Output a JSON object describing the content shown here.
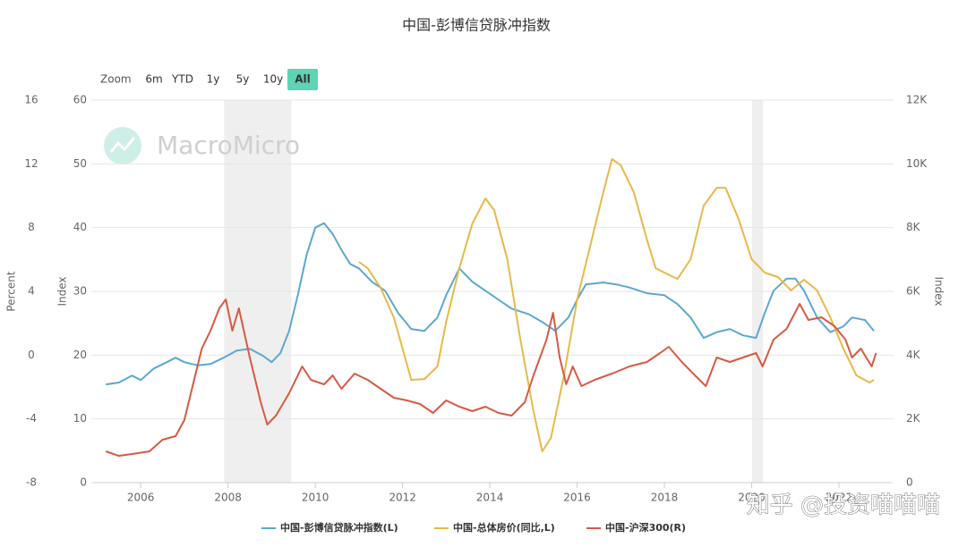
{
  "chart_data": {
    "type": "line",
    "title": "中国-彭博信贷脉冲指数",
    "zoom": {
      "label": "Zoom",
      "buttons": [
        "6m",
        "YTD",
        "1y",
        "5y",
        "10y",
        "All"
      ],
      "selected_index": 5
    },
    "watermarks": [
      "MacroMicro",
      "知乎 @投资喵喵喵"
    ],
    "y_title": "Index",
    "y2_title": "Index",
    "y3_title": "Percent",
    "xlim": [
      2004.93,
      2023.19
    ],
    "xticks": [
      2006,
      2008,
      2010,
      2012,
      2014,
      2016,
      2018,
      2020,
      2022
    ],
    "ylim": [
      0,
      60
    ],
    "yticks": [
      0,
      10,
      20,
      30,
      40,
      50,
      60
    ],
    "y2lim": [
      0,
      12000
    ],
    "y2ticks": [
      0,
      {
        "value": 2000,
        "label": "2K"
      },
      {
        "value": 4000,
        "label": "4K"
      },
      {
        "value": 6000,
        "label": "6K"
      },
      {
        "value": 8000,
        "label": "8K"
      },
      {
        "value": 10000,
        "label": "10K"
      },
      {
        "value": 12000,
        "label": "12K"
      }
    ],
    "y3lim": [
      -8,
      16
    ],
    "y3ticks": [
      -8,
      -4,
      0,
      4,
      8,
      12,
      16
    ],
    "grid": true,
    "legend": "bottom",
    "shaded_x": [
      [
        2007.91,
        2009.45
      ],
      [
        2020.01,
        2020.26
      ]
    ],
    "series": [
      {
        "name": "中国-彭博信贷脉冲指数(L)",
        "color": "#5ba8d0",
        "axis": "y",
        "x": [
          2005.2,
          2005.5,
          2005.8,
          2006.0,
          2006.3,
          2006.6,
          2006.8,
          2007.0,
          2007.3,
          2007.6,
          2007.9,
          2008.2,
          2008.5,
          2008.8,
          2009.0,
          2009.2,
          2009.4,
          2009.6,
          2009.8,
          2010.0,
          2010.2,
          2010.4,
          2010.6,
          2010.8,
          2011.0,
          2011.3,
          2011.6,
          2011.9,
          2012.2,
          2012.5,
          2012.8,
          2013.0,
          2013.3,
          2013.6,
          2013.9,
          2014.2,
          2014.5,
          2014.9,
          2015.2,
          2015.5,
          2015.8,
          2016.0,
          2016.2,
          2016.6,
          2016.9,
          2017.2,
          2017.6,
          2018.0,
          2018.3,
          2018.6,
          2018.9,
          2019.2,
          2019.5,
          2019.8,
          2020.1,
          2020.3,
          2020.5,
          2020.8,
          2021.0,
          2021.2,
          2021.5,
          2021.8,
          2022.1,
          2022.3,
          2022.6,
          2022.8
        ],
        "values": [
          15.4,
          15.7,
          16.8,
          16.1,
          17.9,
          18.9,
          19.6,
          18.9,
          18.4,
          18.6,
          19.6,
          20.7,
          21.0,
          19.9,
          18.9,
          20.3,
          23.8,
          29.4,
          35.7,
          40.0,
          40.7,
          39.0,
          36.5,
          34.3,
          33.6,
          31.5,
          30.1,
          26.6,
          24.1,
          23.8,
          25.9,
          29.4,
          33.6,
          31.5,
          30.1,
          28.7,
          27.3,
          26.4,
          25.2,
          23.8,
          25.9,
          28.7,
          31.1,
          31.4,
          31.1,
          30.6,
          29.7,
          29.4,
          28.0,
          25.9,
          22.7,
          23.6,
          24.1,
          23.1,
          22.7,
          26.6,
          30.1,
          32.0,
          32.0,
          30.1,
          25.9,
          23.6,
          24.5,
          25.9,
          25.5,
          23.8
        ]
      },
      {
        "name": "中国-总体房价(同比,L)",
        "color": "#e8b94a",
        "axis": "y3",
        "x": [
          2011.0,
          2011.2,
          2011.5,
          2011.8,
          2012.0,
          2012.2,
          2012.5,
          2012.8,
          2013.0,
          2013.3,
          2013.6,
          2013.9,
          2014.1,
          2014.4,
          2014.7,
          2015.0,
          2015.2,
          2015.4,
          2015.7,
          2016.0,
          2016.3,
          2016.6,
          2016.8,
          2017.0,
          2017.3,
          2017.6,
          2017.8,
          2018.0,
          2018.3,
          2018.6,
          2018.9,
          2019.2,
          2019.4,
          2019.7,
          2020.0,
          2020.3,
          2020.6,
          2020.9,
          2021.2,
          2021.5,
          2021.8,
          2022.1,
          2022.4,
          2022.7,
          2022.8
        ],
        "values": [
          5.85,
          5.46,
          4.22,
          2.37,
          0.41,
          -1.55,
          -1.5,
          -0.71,
          2.09,
          5.46,
          8.26,
          9.83,
          9.1,
          6.02,
          0.97,
          -3.51,
          -6.04,
          -5.2,
          -1.27,
          3.49,
          6.86,
          10.22,
          12.3,
          11.91,
          10.22,
          7.25,
          5.46,
          5.18,
          4.78,
          6.02,
          9.38,
          10.5,
          10.5,
          8.54,
          6.02,
          5.18,
          4.9,
          4.06,
          4.73,
          4.06,
          2.37,
          0.41,
          -1.27,
          -1.72,
          -1.55
        ]
      },
      {
        "name": "中国-沪深300(R)",
        "color": "#d65a44",
        "axis": "y2",
        "x": [
          2005.2,
          2005.5,
          2005.8,
          2006.2,
          2006.5,
          2006.8,
          2007.0,
          2007.2,
          2007.4,
          2007.6,
          2007.8,
          2007.95,
          2008.1,
          2008.25,
          2008.5,
          2008.75,
          2008.9,
          2009.1,
          2009.4,
          2009.6,
          2009.7,
          2009.9,
          2010.2,
          2010.4,
          2010.6,
          2010.9,
          2011.2,
          2011.5,
          2011.8,
          2012.1,
          2012.4,
          2012.7,
          2013.0,
          2013.3,
          2013.6,
          2013.9,
          2014.2,
          2014.5,
          2014.8,
          2015.0,
          2015.3,
          2015.45,
          2015.6,
          2015.75,
          2015.9,
          2016.1,
          2016.4,
          2016.8,
          2017.2,
          2017.6,
          2017.9,
          2018.1,
          2018.4,
          2018.7,
          2018.95,
          2019.2,
          2019.5,
          2019.8,
          2020.1,
          2020.25,
          2020.5,
          2020.8,
          2021.1,
          2021.3,
          2021.6,
          2021.9,
          2022.15,
          2022.3,
          2022.5,
          2022.75,
          2022.85
        ],
        "values": [
          981,
          841,
          897,
          981,
          1346,
          1458,
          1963,
          3084,
          4206,
          4767,
          5468,
          5748,
          4767,
          5468,
          3926,
          2524,
          1823,
          2103,
          2804,
          3365,
          3645,
          3225,
          3084,
          3365,
          2944,
          3421,
          3225,
          2944,
          2664,
          2580,
          2468,
          2187,
          2580,
          2383,
          2243,
          2383,
          2187,
          2103,
          2524,
          3365,
          4486,
          5328,
          3926,
          3084,
          3645,
          3028,
          3225,
          3421,
          3645,
          3786,
          4066,
          4262,
          3786,
          3365,
          3028,
          3926,
          3786,
          3926,
          4066,
          3645,
          4486,
          4823,
          5608,
          5103,
          5188,
          4907,
          4486,
          3926,
          4206,
          3645,
          4066
        ]
      }
    ]
  }
}
